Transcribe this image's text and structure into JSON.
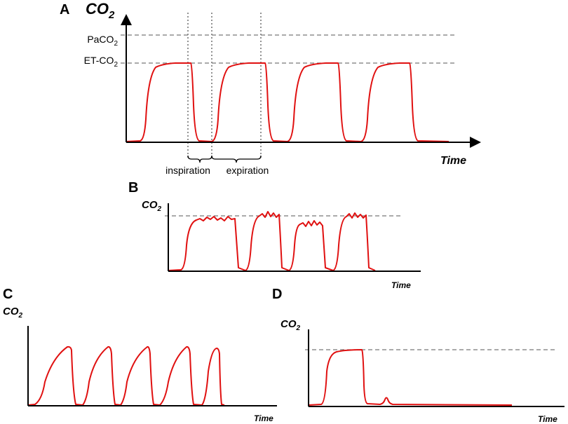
{
  "panels": [
    {
      "label": "A",
      "y_label": {
        "main": "CO",
        "sub": "2"
      },
      "x_label": "Time",
      "levels": [
        {
          "main": "PaCO",
          "sub": "2"
        },
        {
          "main": "ET-CO",
          "sub": "2"
        }
      ],
      "phases": [
        "inspiration",
        "expiration"
      ]
    },
    {
      "label": "B",
      "y_label": {
        "main": "CO",
        "sub": "2"
      },
      "x_label": "Time"
    },
    {
      "label": "C",
      "y_label": {
        "main": "CO",
        "sub": "2"
      },
      "x_label": "Time"
    },
    {
      "label": "D",
      "y_label": {
        "main": "CO",
        "sub": "2"
      },
      "x_label": "Time"
    }
  ]
}
